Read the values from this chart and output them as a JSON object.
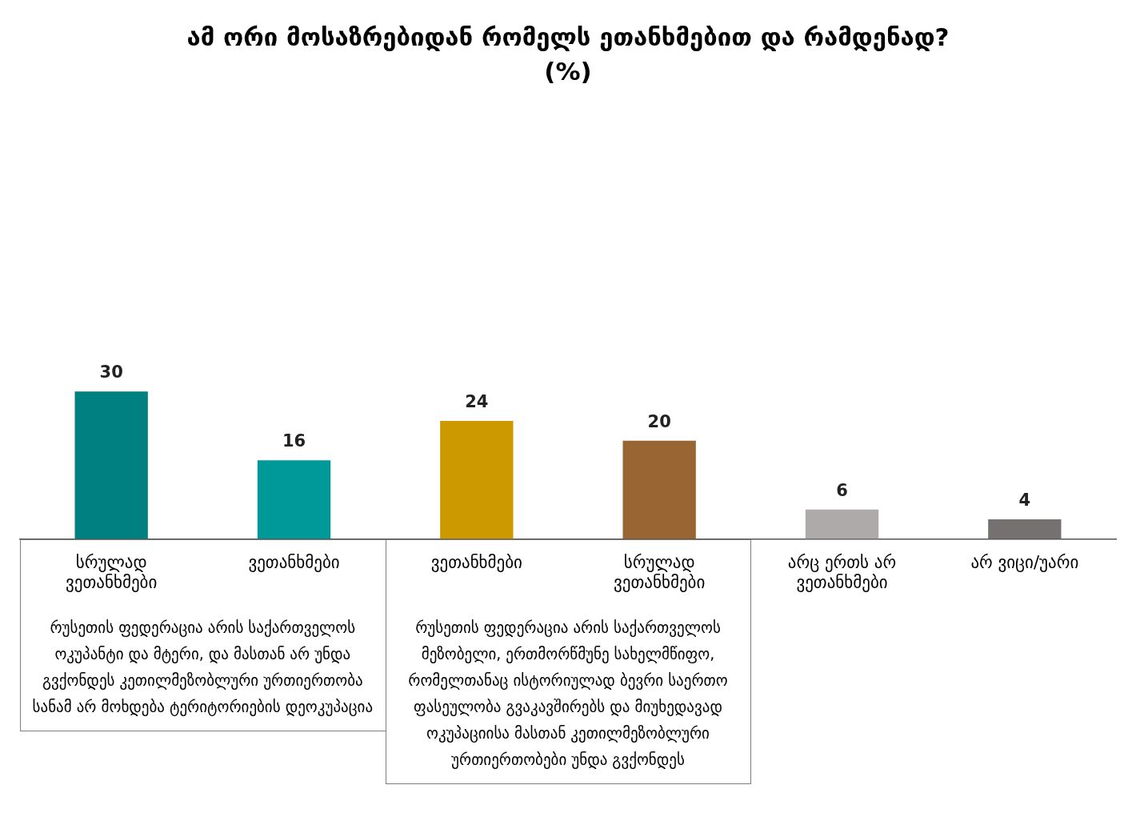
{
  "chart_data": {
    "type": "bar",
    "title": "ამ ორი მოსაზრებიდან რომელს ეთანხმებით და რამდენად?",
    "subtitle": "(%)",
    "categories": [
      "სრულად ვეთანხმები",
      "ვეთანხმები",
      "ვეთანხმები",
      "სრულად ვეთანხმები",
      "არც ერთს არ ვეთანხმები",
      "არ ვიცი/უარი"
    ],
    "values": [
      30,
      16,
      24,
      20,
      6,
      4
    ],
    "colors": [
      "#008080",
      "#009999",
      "#cc9900",
      "#996633",
      "#aeaaaa",
      "#767171"
    ],
    "data_labels": true,
    "grid": false,
    "legend": false,
    "annotations": [
      "რუსეთის ფედერაცია არის საქართველოს ოკუპანტი და მტერი, და მასთან არ უნდა გვქონდეს კეთილმეზობლური ურთიერთობა სანამ არ მოხდება ტერიტორიების დეოკუპაცია",
      "რუსეთის ფედერაცია არის საქართველოს მეზობელი, ერთმორწმუნე სახელმწიფო, რომელთანაც ისტორიულად ბევრი საერთო ფასეულობა გვაკავშირებს და მიუხედავად ოკუპაციისა მასთან კეთილმეზობლური ურთიერთობები უნდა გვქონდეს"
    ]
  }
}
